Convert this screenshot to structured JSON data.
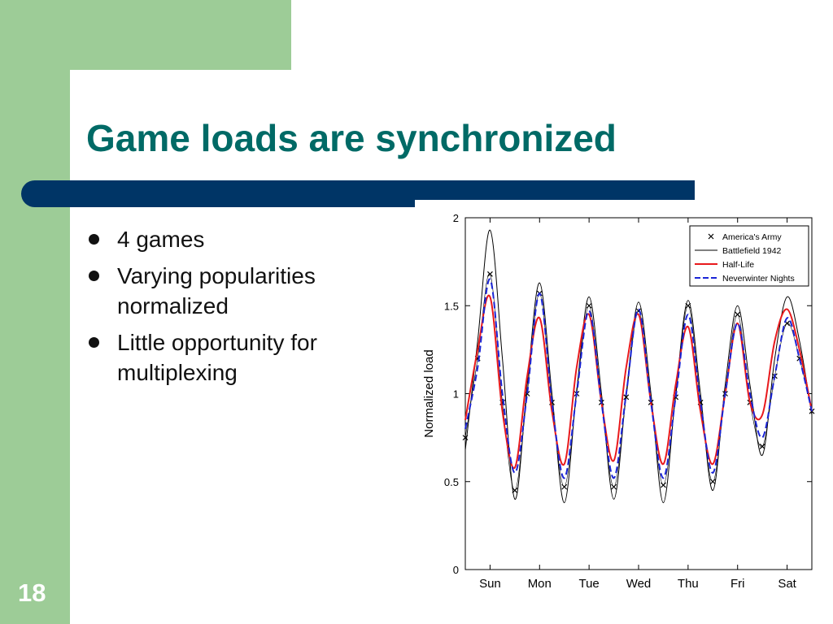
{
  "slide": {
    "title": "Game loads are synchronized",
    "number": "18",
    "bullets": [
      {
        "text": "4 games"
      },
      {
        "text": "Varying popularities normalized"
      },
      {
        "text": "Little opportunity for multiplexing"
      }
    ],
    "colors": {
      "sidebar": "#9dcc97",
      "title": "#006a66",
      "bar": "#003566"
    }
  },
  "chart_data": {
    "type": "line",
    "title": "",
    "xlabel": "",
    "ylabel": "Normalized load",
    "ylim": [
      0,
      2
    ],
    "yticks": [
      "0",
      "0.5",
      "1",
      "1.5",
      "2"
    ],
    "xlim": [
      0,
      7
    ],
    "x_tick_positions": [
      0.5,
      1.5,
      2.5,
      3.5,
      4.5,
      5.5,
      6.5
    ],
    "x_tick_labels": [
      "Sun",
      "Mon",
      "Tue",
      "Wed",
      "Thu",
      "Fri",
      "Sat"
    ],
    "legend_position": "top-right",
    "grid": false,
    "x": [
      0,
      0.25,
      0.5,
      0.75,
      1,
      1.25,
      1.5,
      1.75,
      2,
      2.25,
      2.5,
      2.75,
      3,
      3.25,
      3.5,
      3.75,
      4,
      4.25,
      4.5,
      4.75,
      5,
      5.25,
      5.5,
      5.75,
      6,
      6.25,
      6.5,
      6.75,
      7
    ],
    "series": [
      {
        "name": "America's Army",
        "color": "#000000",
        "style": "markers-x",
        "values": [
          0.75,
          1.2,
          1.68,
          0.95,
          0.45,
          1.0,
          1.57,
          0.95,
          0.47,
          1.0,
          1.5,
          0.95,
          0.47,
          0.98,
          1.47,
          0.95,
          0.48,
          0.98,
          1.5,
          0.95,
          0.5,
          1.0,
          1.45,
          0.95,
          0.7,
          1.1,
          1.4,
          1.2,
          0.9
        ]
      },
      {
        "name": "Battlefield 1942",
        "color": "#000000",
        "style": "solid-thin",
        "values": [
          0.68,
          1.3,
          1.93,
          1.2,
          0.4,
          1.05,
          1.63,
          1.0,
          0.38,
          1.02,
          1.55,
          1.0,
          0.4,
          1.0,
          1.52,
          1.0,
          0.38,
          1.0,
          1.53,
          1.0,
          0.45,
          1.05,
          1.5,
          1.05,
          0.65,
          1.2,
          1.55,
          1.3,
          0.88
        ]
      },
      {
        "name": "Half-Life",
        "color": "#e8191c",
        "style": "solid",
        "values": [
          0.85,
          1.25,
          1.55,
          0.9,
          0.58,
          1.1,
          1.43,
          0.9,
          0.6,
          1.15,
          1.45,
          0.95,
          0.62,
          1.15,
          1.45,
          0.95,
          0.6,
          1.05,
          1.38,
          0.9,
          0.6,
          1.0,
          1.4,
          0.95,
          0.88,
          1.3,
          1.48,
          1.25,
          0.9
        ]
      },
      {
        "name": "Neverwinter Nights",
        "color": "#1a24d6",
        "style": "dashed",
        "values": [
          0.8,
          1.15,
          1.65,
          1.0,
          0.55,
          1.0,
          1.57,
          0.95,
          0.52,
          1.0,
          1.47,
          0.95,
          0.52,
          1.0,
          1.48,
          0.95,
          0.52,
          0.98,
          1.45,
          0.95,
          0.55,
          1.0,
          1.4,
          1.0,
          0.75,
          1.1,
          1.43,
          1.2,
          0.9
        ]
      }
    ]
  }
}
